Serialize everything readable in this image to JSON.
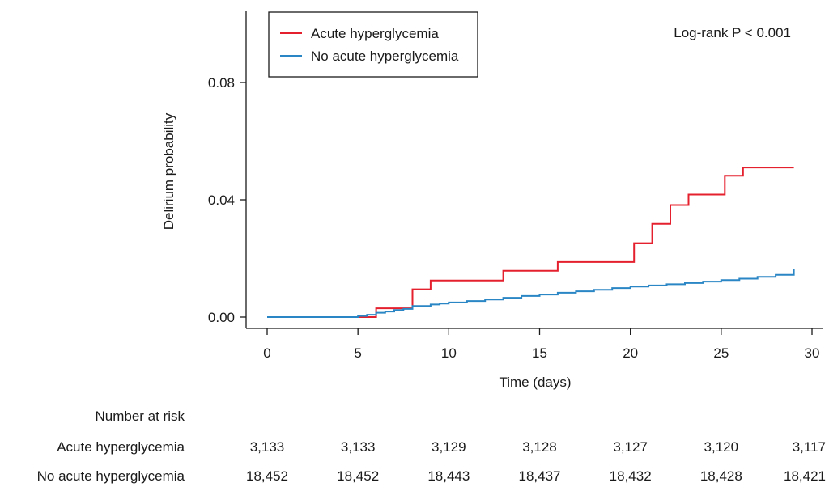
{
  "chart_data": {
    "type": "line",
    "step": true,
    "xlabel": "Time (days)",
    "ylabel": "Delirium probability",
    "xlim": [
      0,
      30
    ],
    "ylim": [
      0,
      0.08
    ],
    "x_ticks": [
      0,
      5,
      10,
      15,
      20,
      25,
      30
    ],
    "y_ticks": [
      0.0,
      0.04,
      0.08
    ],
    "x_tick_labels": [
      "0",
      "5",
      "10",
      "15",
      "20",
      "25",
      "30"
    ],
    "y_tick_labels": [
      "0.00",
      "0.04",
      "0.08"
    ],
    "grid": false,
    "legend_position": "top-left",
    "annotation": "Log-rank P < 0.001",
    "series": [
      {
        "name": "Acute hyperglycemia",
        "color": "#e5202e",
        "x": [
          0,
          6,
          7,
          8,
          9,
          13,
          16,
          20.2,
          21.2,
          22.2,
          23.2,
          25.2,
          26.2,
          29
        ],
        "y": [
          0,
          0.003,
          0.003,
          0.0095,
          0.0125,
          0.0158,
          0.0188,
          0.0252,
          0.0318,
          0.0382,
          0.0418,
          0.0482,
          0.051,
          0.051
        ]
      },
      {
        "name": "No acute hyperglycemia",
        "color": "#2a86c4",
        "x": [
          0,
          5,
          5.5,
          6,
          6.5,
          7,
          7.5,
          8,
          9,
          9.5,
          10,
          11,
          12,
          13,
          14,
          15,
          16,
          17,
          18,
          19,
          20,
          21,
          22,
          23,
          24,
          25,
          26,
          27,
          28,
          29
        ],
        "y": [
          0,
          0.0004,
          0.0008,
          0.0015,
          0.0019,
          0.0024,
          0.0028,
          0.0038,
          0.0043,
          0.0046,
          0.005,
          0.0055,
          0.006,
          0.0066,
          0.0072,
          0.0077,
          0.0083,
          0.0088,
          0.0093,
          0.0099,
          0.0104,
          0.0108,
          0.0112,
          0.0116,
          0.0121,
          0.0126,
          0.0131,
          0.0137,
          0.0144,
          0.0163
        ]
      }
    ],
    "risk_table": {
      "title": "Number at risk",
      "rows": [
        {
          "label": "Acute hyperglycemia",
          "values": [
            "3,133",
            "3,133",
            "3,129",
            "3,128",
            "3,127",
            "3,120",
            "3,117"
          ]
        },
        {
          "label": "No acute hyperglycemia",
          "values": [
            "18,452",
            "18,452",
            "18,443",
            "18,437",
            "18,432",
            "18,428",
            "18,421"
          ]
        }
      ]
    }
  }
}
